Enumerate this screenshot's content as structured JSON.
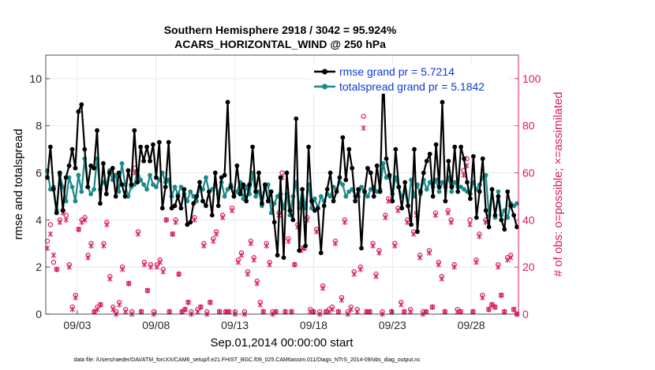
{
  "chart_data": {
    "type": "line",
    "title_line1": "Southern Hemisphere 2918 / 3042 = 95.924%",
    "title_line2": "ACARS_HORIZONTAL_WIND @ 250 hPa",
    "xlabel": "Sep.01,2014 00:00:00 start",
    "ylabel_left": "rmse and totalspread",
    "ylabel_right": "# of obs: o=possible; ×=assimilated",
    "footer": "data file: /Users/raeder/DAI/ATM_forcXX/CAM6_setup/f.e21.FHIST_BGC.f09_025.CAM6assim.011/Diags_NTrS_2014-09/obs_diag_output.nc",
    "xlim": [
      1.0,
      31.0
    ],
    "ylim_left": [
      0,
      11
    ],
    "ylim_right": [
      0,
      110
    ],
    "x_ticks": [
      3,
      8,
      13,
      18,
      23,
      28
    ],
    "x_tick_labels": [
      "09/03",
      "09/08",
      "09/13",
      "09/18",
      "09/23",
      "09/28"
    ],
    "y_left_ticks": [
      "0",
      "2",
      "4",
      "6",
      "8",
      "10"
    ],
    "y_right_ticks": [
      "0",
      "20",
      "40",
      "60",
      "80",
      "100"
    ],
    "colors": {
      "rmse": "#000000",
      "spread": "#1b8a8a",
      "obs": "#d81b60",
      "legend_text": "#0b37d9",
      "right_axis": "#d81b60"
    },
    "series": [
      {
        "name": "rmse",
        "legend": "rmse grand pr = 5.7214",
        "axis": "left",
        "values": [
          5.8,
          7.1,
          5.3,
          4.3,
          6.0,
          4.4,
          5.8,
          6.3,
          7.0,
          6.2,
          8.6,
          8.9,
          7.0,
          5.4,
          6.3,
          6.2,
          7.8,
          4.7,
          6.4,
          5.1,
          6.0,
          6.2,
          5.0,
          6.0,
          5.5,
          5.0,
          6.1,
          5.5,
          7.8,
          5.6,
          7.1,
          6.5,
          7.1,
          6.5,
          7.2,
          5.8,
          7.3,
          4.5,
          5.4,
          7.3,
          4.5,
          4.6,
          5.0,
          4.5,
          5.3,
          3.8,
          3.9,
          4.7,
          5.0,
          5.6,
          4.8,
          4.6,
          5.2,
          4.2,
          6.0,
          4.6,
          5.8,
          5.9,
          9.0,
          5.4,
          5.0,
          6.3,
          5.1,
          5.5,
          4.8,
          5.5,
          7.1,
          5.2,
          6.0,
          4.7,
          5.5,
          4.8,
          5.2,
          3.9,
          2.5,
          5.8,
          2.4,
          6.0,
          4.4,
          4.0,
          8.3,
          2.7,
          5.3,
          2.9,
          7.1,
          4.8,
          4.4,
          4.5,
          2.6,
          4.6,
          5.3,
          6.0,
          4.8,
          5.2,
          5.8,
          7.5,
          5.7,
          7.0,
          6.2,
          4.8,
          5.3,
          2.8,
          5.2,
          6.2,
          6.0,
          5.0,
          6.3,
          5.2,
          10.3,
          6.6,
          5.9,
          4.8,
          7.0,
          5.4,
          4.5,
          5.6,
          4.6,
          3.8,
          7.0,
          3.5,
          5.2,
          6.0,
          6.5,
          6.8,
          5.0,
          7.2,
          5.4,
          9.0,
          4.8,
          6.5,
          5.4,
          7.1,
          5.2,
          7.1,
          6.6,
          5.6,
          4.9,
          6.7,
          4.1,
          5.2,
          6.6,
          4.4,
          3.7,
          5.3,
          4.2,
          5.0,
          4.0,
          3.6,
          5.2,
          4.6,
          4.2,
          3.7
        ]
      },
      {
        "name": "totalspread",
        "legend": "totalspread grand pr = 5.1842",
        "axis": "left",
        "values": [
          6.1,
          5.3,
          5.4,
          4.4,
          5.9,
          5.4,
          4.8,
          5.8,
          5.4,
          4.8,
          5.9,
          5.2,
          6.6,
          5.4,
          5.1,
          5.3,
          6.6,
          5.3,
          5.6,
          5.5,
          6.1,
          5.7,
          5.9,
          5.2,
          6.4,
          5.5,
          5.0,
          5.4,
          5.5,
          6.1,
          5.7,
          5.5,
          5.3,
          5.9,
          5.5,
          5.4,
          5.7,
          6.0,
          5.6,
          5.7,
          5.0,
          5.4,
          5.1,
          5.4,
          5.1,
          4.8,
          5.2,
          5.0,
          4.8,
          5.4,
          5.3,
          5.8,
          5.2,
          5.3,
          5.5,
          5.1,
          5.6,
          5.0,
          5.3,
          5.5,
          5.0,
          5.2,
          5.6,
          4.9,
          5.4,
          5.1,
          6.0,
          5.0,
          5.2,
          4.6,
          5.4,
          5.5,
          4.3,
          4.7,
          5.0,
          5.1,
          4.5,
          5.1,
          4.2,
          5.0,
          5.6,
          4.5,
          5.3,
          4.5,
          5.5,
          4.5,
          4.9,
          4.5,
          5.0,
          4.8,
          5.1,
          5.0,
          5.4,
          5.3,
          5.6,
          5.5,
          5.0,
          5.2,
          5.3,
          5.0,
          5.0,
          5.4,
          5.2,
          5.0,
          5.3,
          5.4,
          5.2,
          5.3,
          6.4,
          5.8,
          5.8,
          5.1,
          5.8,
          5.4,
          5.0,
          5.2,
          4.6,
          5.7,
          5.0,
          5.5,
          5.1,
          5.7,
          5.3,
          5.6,
          5.4,
          5.7,
          5.2,
          5.6,
          5.4,
          5.8,
          5.2,
          5.6,
          5.4,
          5.4,
          5.3,
          5.2,
          5.1,
          5.6,
          5.3,
          5.5,
          5.8,
          5.9,
          4.2,
          5.3,
          4.1,
          5.2,
          4.2,
          4.4,
          4.1,
          4.7,
          4.6,
          4.7
        ]
      },
      {
        "name": "obs_possible",
        "marker": "o",
        "axis": "right",
        "values": [
          31,
          38,
          22,
          19,
          40,
          44,
          42,
          21,
          3,
          8,
          36,
          40,
          41,
          25,
          30,
          1,
          3,
          4,
          30,
          39,
          16,
          3,
          1,
          5,
          20,
          2,
          13,
          1,
          62,
          35,
          1,
          22,
          10,
          21,
          1,
          21,
          23,
          19,
          40,
          1,
          34,
          40,
          17,
          1,
          2,
          5,
          1,
          41,
          2,
          3,
          30,
          1,
          5,
          32,
          35,
          1,
          42,
          1,
          1,
          45,
          1,
          23,
          26,
          1,
          18,
          31,
          24,
          14,
          5,
          1,
          30,
          22,
          1,
          1,
          43,
          60,
          1,
          32,
          1,
          21,
          38,
          28,
          28,
          41,
          2,
          1,
          36,
          1,
          12,
          1,
          2,
          3,
          31,
          1,
          7,
          40,
          1,
          3,
          18,
          2,
          20,
          84,
          1,
          1,
          30,
          17,
          27,
          1,
          42,
          49,
          1,
          30,
          45,
          5,
          1,
          40,
          2,
          35,
          43,
          25,
          1,
          1,
          27,
          3,
          43,
          22,
          16,
          1,
          44,
          40,
          21,
          2,
          1,
          61,
          66,
          40,
          1,
          23,
          34,
          8,
          40,
          2,
          4,
          3,
          21,
          8,
          1,
          24,
          25,
          2,
          0
        ]
      },
      {
        "name": "obs_assimilated",
        "marker": "x",
        "axis": "right",
        "values": [
          28,
          34,
          25,
          19,
          39,
          43,
          40,
          20,
          2,
          7,
          36,
          39,
          40,
          24,
          29,
          1,
          2,
          4,
          29,
          38,
          15,
          2,
          0,
          4,
          19,
          1,
          13,
          0,
          60,
          34,
          1,
          21,
          10,
          20,
          0,
          20,
          22,
          18,
          40,
          1,
          34,
          39,
          17,
          1,
          2,
          5,
          0,
          40,
          1,
          3,
          29,
          0,
          5,
          31,
          34,
          1,
          41,
          1,
          1,
          44,
          0,
          22,
          25,
          0,
          17,
          30,
          23,
          13,
          4,
          1,
          29,
          21,
          0,
          1,
          42,
          58,
          1,
          31,
          1,
          21,
          37,
          27,
          28,
          40,
          1,
          1,
          35,
          0,
          11,
          1,
          1,
          2,
          30,
          1,
          6,
          39,
          0,
          2,
          17,
          1,
          19,
          79,
          1,
          1,
          29,
          16,
          26,
          0,
          41,
          48,
          1,
          29,
          44,
          4,
          1,
          39,
          1,
          34,
          42,
          24,
          0,
          1,
          26,
          3,
          42,
          21,
          15,
          1,
          43,
          39,
          20,
          1,
          1,
          59,
          63,
          38,
          1,
          22,
          33,
          7,
          39,
          2,
          4,
          3,
          20,
          8,
          1,
          23,
          24,
          2,
          0
        ]
      }
    ]
  }
}
